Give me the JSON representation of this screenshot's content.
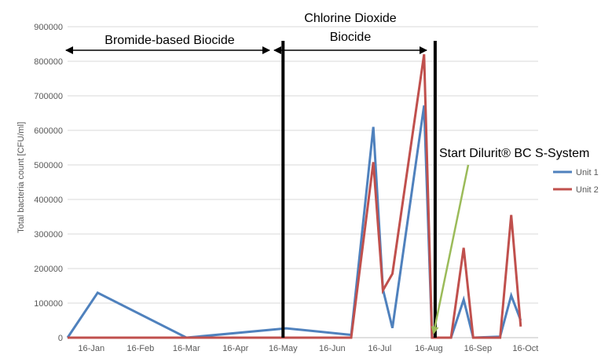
{
  "chart_data": {
    "type": "line",
    "ylabel": "Total bacteria count [CFU/ml]",
    "ylim": [
      0,
      900000
    ],
    "y_ticks": [
      "0",
      "100000",
      "200000",
      "300000",
      "400000",
      "500000",
      "600000",
      "700000",
      "800000",
      "900000"
    ],
    "xlim": [
      "2016-01-01",
      "2016-10-24"
    ],
    "x_ticks": [
      {
        "date": "2016-01-16",
        "label": "16-Jan"
      },
      {
        "date": "2016-02-16",
        "label": "16-Feb"
      },
      {
        "date": "2016-03-16",
        "label": "16-Mar"
      },
      {
        "date": "2016-04-16",
        "label": "16-Apr"
      },
      {
        "date": "2016-05-16",
        "label": "16-May"
      },
      {
        "date": "2016-06-16",
        "label": "16-Jun"
      },
      {
        "date": "2016-07-16",
        "label": "16-Jul"
      },
      {
        "date": "2016-08-16",
        "label": "16-Aug"
      },
      {
        "date": "2016-09-16",
        "label": "16-Sep"
      },
      {
        "date": "2016-10-16",
        "label": "16-Oct"
      }
    ],
    "grid": "horizontal",
    "legend_position": "right",
    "series": [
      {
        "name": "Unit 1",
        "color": "#4F81BD",
        "points": [
          [
            "2016-01-01",
            0
          ],
          [
            "2016-01-20",
            130000
          ],
          [
            "2016-03-16",
            0
          ],
          [
            "2016-05-18",
            27000
          ],
          [
            "2016-06-28",
            8000
          ],
          [
            "2016-07-12",
            610000
          ],
          [
            "2016-07-18",
            140000
          ],
          [
            "2016-07-24",
            28000
          ],
          [
            "2016-08-13",
            672000
          ],
          [
            "2016-08-18",
            0
          ],
          [
            "2016-08-30",
            0
          ],
          [
            "2016-09-07",
            110000
          ],
          [
            "2016-09-13",
            0
          ],
          [
            "2016-09-30",
            3000
          ],
          [
            "2016-10-07",
            122000
          ],
          [
            "2016-10-13",
            50000
          ]
        ]
      },
      {
        "name": "Unit 2",
        "color": "#C0504D",
        "points": [
          [
            "2016-01-01",
            0
          ],
          [
            "2016-03-16",
            0
          ],
          [
            "2016-05-18",
            0
          ],
          [
            "2016-06-28",
            0
          ],
          [
            "2016-07-12",
            508000
          ],
          [
            "2016-07-18",
            137000
          ],
          [
            "2016-07-24",
            185000
          ],
          [
            "2016-08-13",
            820000
          ],
          [
            "2016-08-18",
            0
          ],
          [
            "2016-08-30",
            0
          ],
          [
            "2016-09-07",
            260000
          ],
          [
            "2016-09-13",
            0
          ],
          [
            "2016-09-30",
            0
          ],
          [
            "2016-10-07",
            355000
          ],
          [
            "2016-10-13",
            32000
          ]
        ]
      }
    ],
    "phase_lines": [
      "2016-05-16",
      "2016-08-20"
    ],
    "annotations": {
      "phase1": "Bromide-based Biocide",
      "phase2_line1": "Chlorine Dioxide",
      "phase2_line2": "Biocide",
      "start": "Start Dilurit® BC S-System"
    }
  }
}
